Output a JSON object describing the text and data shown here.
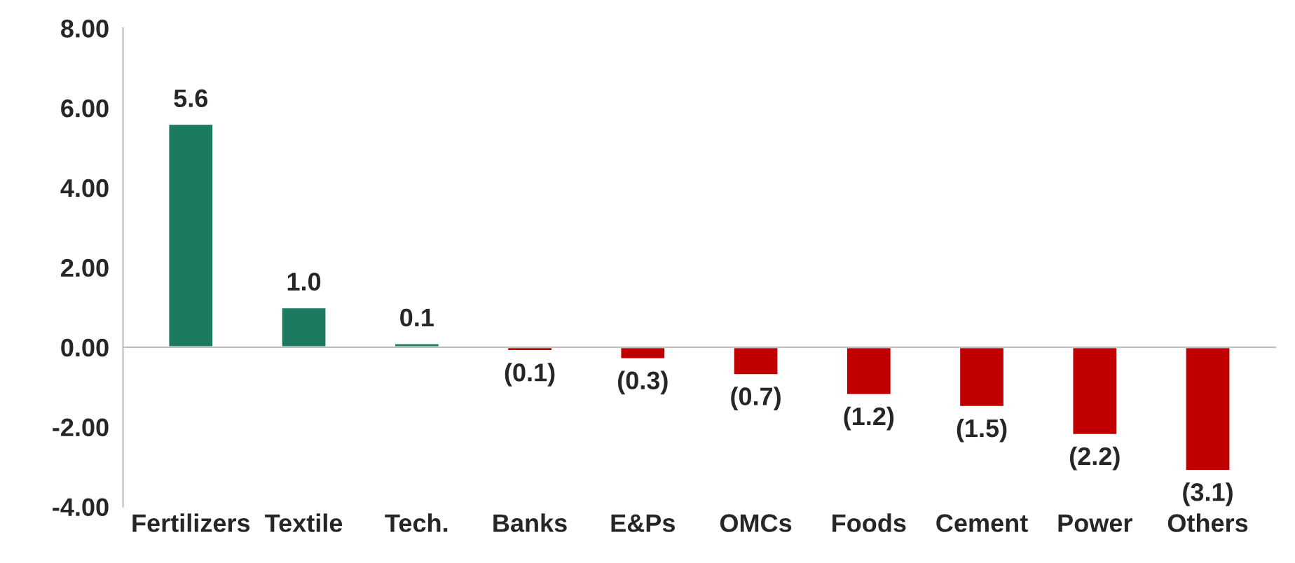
{
  "chart_data": {
    "type": "bar",
    "categories": [
      "Fertilizers",
      "Textile",
      "Tech.",
      "Banks",
      "E&Ps",
      "OMCs",
      "Foods",
      "Cement",
      "Power",
      "Others"
    ],
    "values": [
      5.6,
      1.0,
      0.1,
      -0.1,
      -0.3,
      -0.7,
      -1.2,
      -1.5,
      -2.2,
      -3.1
    ],
    "colors": [
      "#1b7a5f",
      "#1b7a5f",
      "#1b7a5f",
      "#c00000",
      "#c00000",
      "#c00000",
      "#c00000",
      "#c00000",
      "#c00000",
      "#c00000"
    ],
    "value_labels": [
      "5.6",
      "1.0",
      "0.1",
      "(0.1)",
      "(0.3)",
      "(0.7)",
      "(1.2)",
      "(1.5)",
      "(2.2)",
      "(3.1)"
    ],
    "ylim": [
      -4,
      8
    ],
    "yticks": [
      {
        "value": -4,
        "label": "-4.00"
      },
      {
        "value": -2,
        "label": "-2.00"
      },
      {
        "value": 0,
        "label": "0.00"
      },
      {
        "value": 2,
        "label": "2.00"
      },
      {
        "value": 4,
        "label": "4.00"
      },
      {
        "value": 6,
        "label": "6.00"
      },
      {
        "value": 8,
        "label": "8.00"
      }
    ],
    "legend": false
  }
}
